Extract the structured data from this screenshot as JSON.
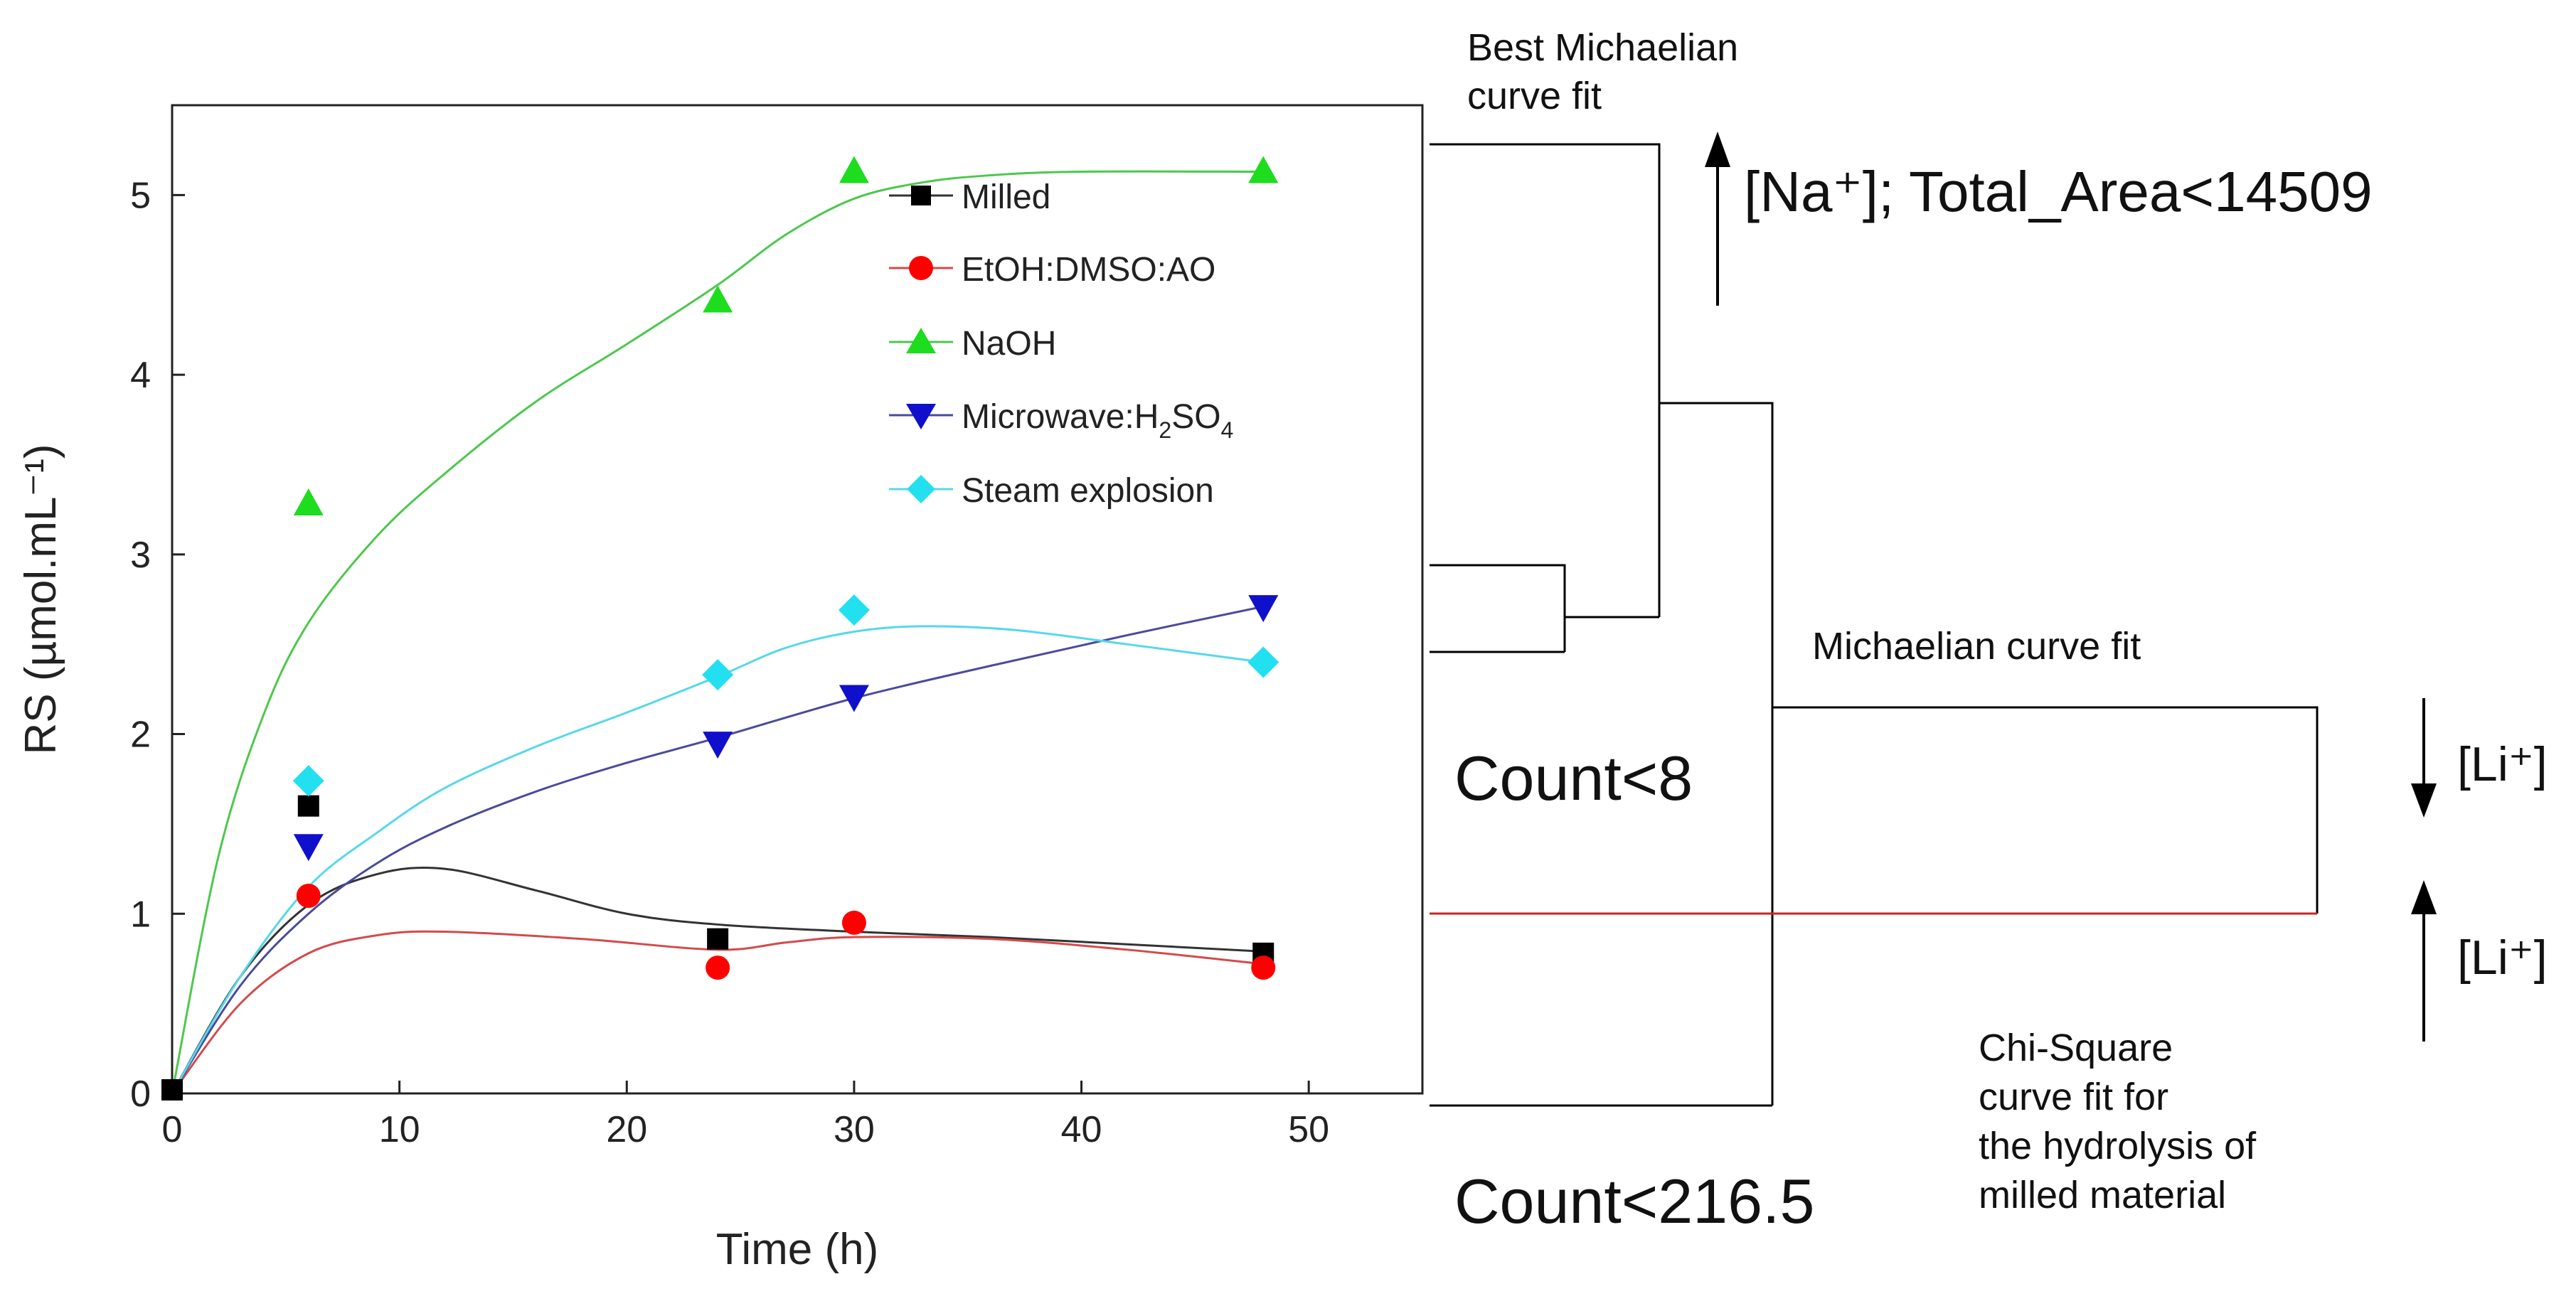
{
  "chart_data": {
    "type": "scatter",
    "title": "",
    "xlabel": "Time (h)",
    "ylabel": "RS (µmol.mL⁻¹)",
    "xlim": [
      0,
      55
    ],
    "ylim": [
      0,
      5.5
    ],
    "x_ticks": [
      0,
      10,
      20,
      30,
      40,
      50
    ],
    "y_ticks": [
      0,
      1,
      2,
      3,
      4,
      5
    ],
    "legend_position": "top-right",
    "series": [
      {
        "name": "Milled",
        "marker": "square",
        "color": "#000000",
        "line_color": "#333333",
        "points": [
          [
            0,
            0.02
          ],
          [
            6,
            1.6
          ],
          [
            24,
            0.86
          ],
          [
            48,
            0.78
          ]
        ],
        "curve": [
          [
            0,
            0
          ],
          [
            3,
            0.65
          ],
          [
            6,
            1.05
          ],
          [
            9,
            1.22
          ],
          [
            12,
            1.25
          ],
          [
            16,
            1.13
          ],
          [
            20,
            1.0
          ],
          [
            24,
            0.94
          ],
          [
            30,
            0.9
          ],
          [
            36,
            0.87
          ],
          [
            42,
            0.83
          ],
          [
            48,
            0.79
          ]
        ]
      },
      {
        "name": "EtOH:DMSO:AO",
        "marker": "circle",
        "color": "#ff0000",
        "line_color": "#d44a4a",
        "points": [
          [
            6,
            1.1
          ],
          [
            24,
            0.7
          ],
          [
            30,
            0.95
          ],
          [
            48,
            0.7
          ]
        ],
        "curve": [
          [
            0,
            0
          ],
          [
            3,
            0.5
          ],
          [
            6,
            0.78
          ],
          [
            9,
            0.88
          ],
          [
            12,
            0.9
          ],
          [
            18,
            0.86
          ],
          [
            24,
            0.8
          ],
          [
            27,
            0.84
          ],
          [
            30,
            0.87
          ],
          [
            36,
            0.86
          ],
          [
            42,
            0.8
          ],
          [
            48,
            0.72
          ]
        ]
      },
      {
        "name": "NaOH",
        "marker": "triangle-up",
        "color": "#1edc1e",
        "line_color": "#4cc84c",
        "points": [
          [
            6,
            3.28
          ],
          [
            24,
            4.41
          ],
          [
            30,
            5.13
          ],
          [
            48,
            5.13
          ]
        ],
        "curve": [
          [
            0,
            0
          ],
          [
            2,
            1.3
          ],
          [
            4,
            2.1
          ],
          [
            6,
            2.62
          ],
          [
            9,
            3.1
          ],
          [
            12,
            3.45
          ],
          [
            16,
            3.85
          ],
          [
            20,
            4.17
          ],
          [
            24,
            4.5
          ],
          [
            27,
            4.78
          ],
          [
            30,
            4.98
          ],
          [
            33,
            5.07
          ],
          [
            36,
            5.11
          ],
          [
            40,
            5.13
          ],
          [
            48,
            5.13
          ]
        ]
      },
      {
        "name": "Microwave:H2SO4",
        "label_main": "Microwave:H",
        "label_sub": "2",
        "label_mid": "SO",
        "label_sub2": "4",
        "marker": "triangle-down",
        "color": "#1010cc",
        "line_color": "#4a4a9e",
        "points": [
          [
            6,
            1.38
          ],
          [
            24,
            1.95
          ],
          [
            30,
            2.21
          ],
          [
            48,
            2.71
          ]
        ],
        "curve": [
          [
            0,
            0
          ],
          [
            3,
            0.6
          ],
          [
            6,
            1.0
          ],
          [
            9,
            1.28
          ],
          [
            12,
            1.48
          ],
          [
            16,
            1.68
          ],
          [
            20,
            1.84
          ],
          [
            24,
            1.98
          ],
          [
            30,
            2.2
          ],
          [
            36,
            2.38
          ],
          [
            42,
            2.55
          ],
          [
            48,
            2.71
          ]
        ]
      },
      {
        "name": "Steam explosion",
        "marker": "diamond",
        "color": "#22e0f0",
        "line_color": "#55d8ea",
        "points": [
          [
            6,
            1.74
          ],
          [
            24,
            2.33
          ],
          [
            30,
            2.69
          ],
          [
            48,
            2.4
          ]
        ],
        "curve": [
          [
            0,
            0
          ],
          [
            3,
            0.65
          ],
          [
            6,
            1.15
          ],
          [
            9,
            1.45
          ],
          [
            12,
            1.7
          ],
          [
            16,
            1.93
          ],
          [
            20,
            2.12
          ],
          [
            24,
            2.32
          ],
          [
            27,
            2.48
          ],
          [
            30,
            2.57
          ],
          [
            33,
            2.6
          ],
          [
            37,
            2.58
          ],
          [
            42,
            2.5
          ],
          [
            48,
            2.4
          ]
        ]
      }
    ]
  },
  "dendrogram": {
    "labels": {
      "best_fit_line1": "Best Michaelian",
      "best_fit_line2": "curve fit",
      "na_rule": "[Na⁺]; Total_Area<14509",
      "michaelian_fit": "Michaelian curve fit",
      "count8": "Count<8",
      "count216": "Count<216.5",
      "li_down": "[Li⁺]",
      "li_up": "[Li⁺]",
      "chi_line1": "Chi-Square",
      "chi_line2": "curve fit for",
      "chi_line3": "the hydrolysis of",
      "chi_line4": "milled material"
    },
    "colors": {
      "lines": "#000000",
      "highlight": "#cc2222"
    }
  }
}
